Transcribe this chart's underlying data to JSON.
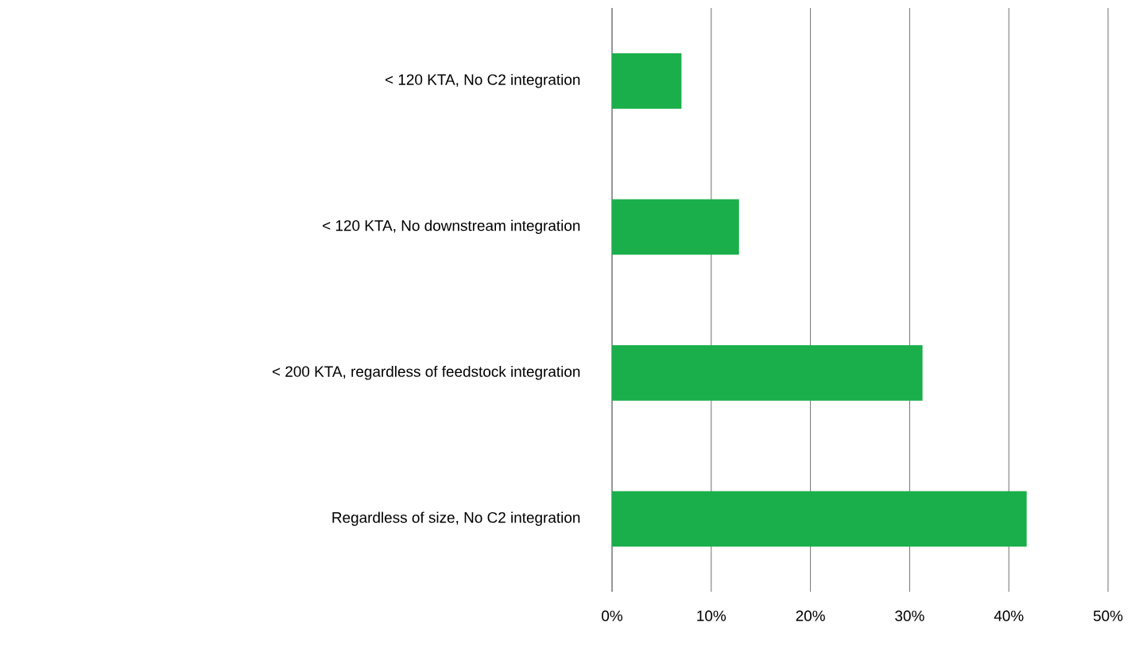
{
  "chart_data": {
    "type": "bar",
    "orientation": "horizontal",
    "categories": [
      "< 120 KTA, No C2 integration",
      "< 120 KTA, No downstream integration",
      "< 200 KTA, regardless of feedstock integration",
      "Regardless of size, No C2 integration"
    ],
    "values": [
      7,
      12.8,
      31.3,
      41.8
    ],
    "color": "#1aaf4b",
    "xlim": [
      0,
      50
    ],
    "xticks": [
      {
        "value": 0,
        "label": "0%"
      },
      {
        "value": 10,
        "label": "10%"
      },
      {
        "value": 20,
        "label": "20%"
      },
      {
        "value": 30,
        "label": "30%"
      },
      {
        "value": 40,
        "label": "40%"
      },
      {
        "value": 50,
        "label": "50%"
      }
    ],
    "grid": "x"
  }
}
